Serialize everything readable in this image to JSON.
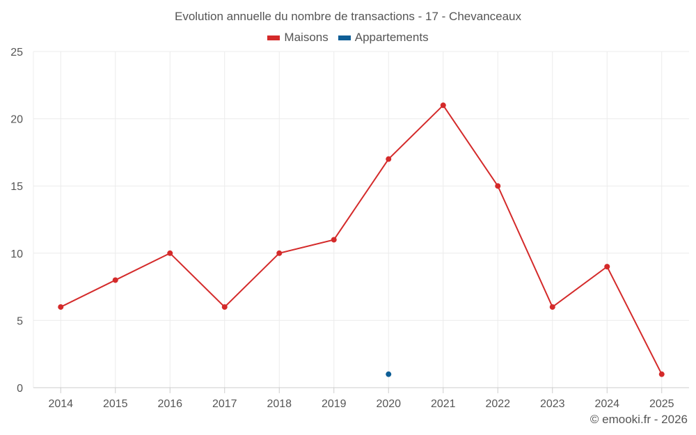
{
  "chart_data": {
    "type": "line",
    "title": "Evolution annuelle du nombre de transactions - 17 - Chevanceaux",
    "categories": [
      "2014",
      "2015",
      "2016",
      "2017",
      "2018",
      "2019",
      "2020",
      "2021",
      "2022",
      "2023",
      "2024",
      "2025"
    ],
    "series": [
      {
        "name": "Maisons",
        "color": "#d42a2a",
        "values": [
          6,
          8,
          10,
          6,
          10,
          11,
          17,
          21,
          15,
          6,
          9,
          1
        ]
      },
      {
        "name": "Appartements",
        "color": "#0e5e96",
        "values": [
          null,
          null,
          null,
          null,
          null,
          null,
          1,
          null,
          null,
          null,
          null,
          null
        ]
      }
    ],
    "yticks": [
      "0",
      "5",
      "10",
      "15",
      "20",
      "25"
    ],
    "ylim": [
      0,
      25
    ],
    "grid": true,
    "legend": "top-center"
  },
  "credit": "© emooki.fr - 2026"
}
